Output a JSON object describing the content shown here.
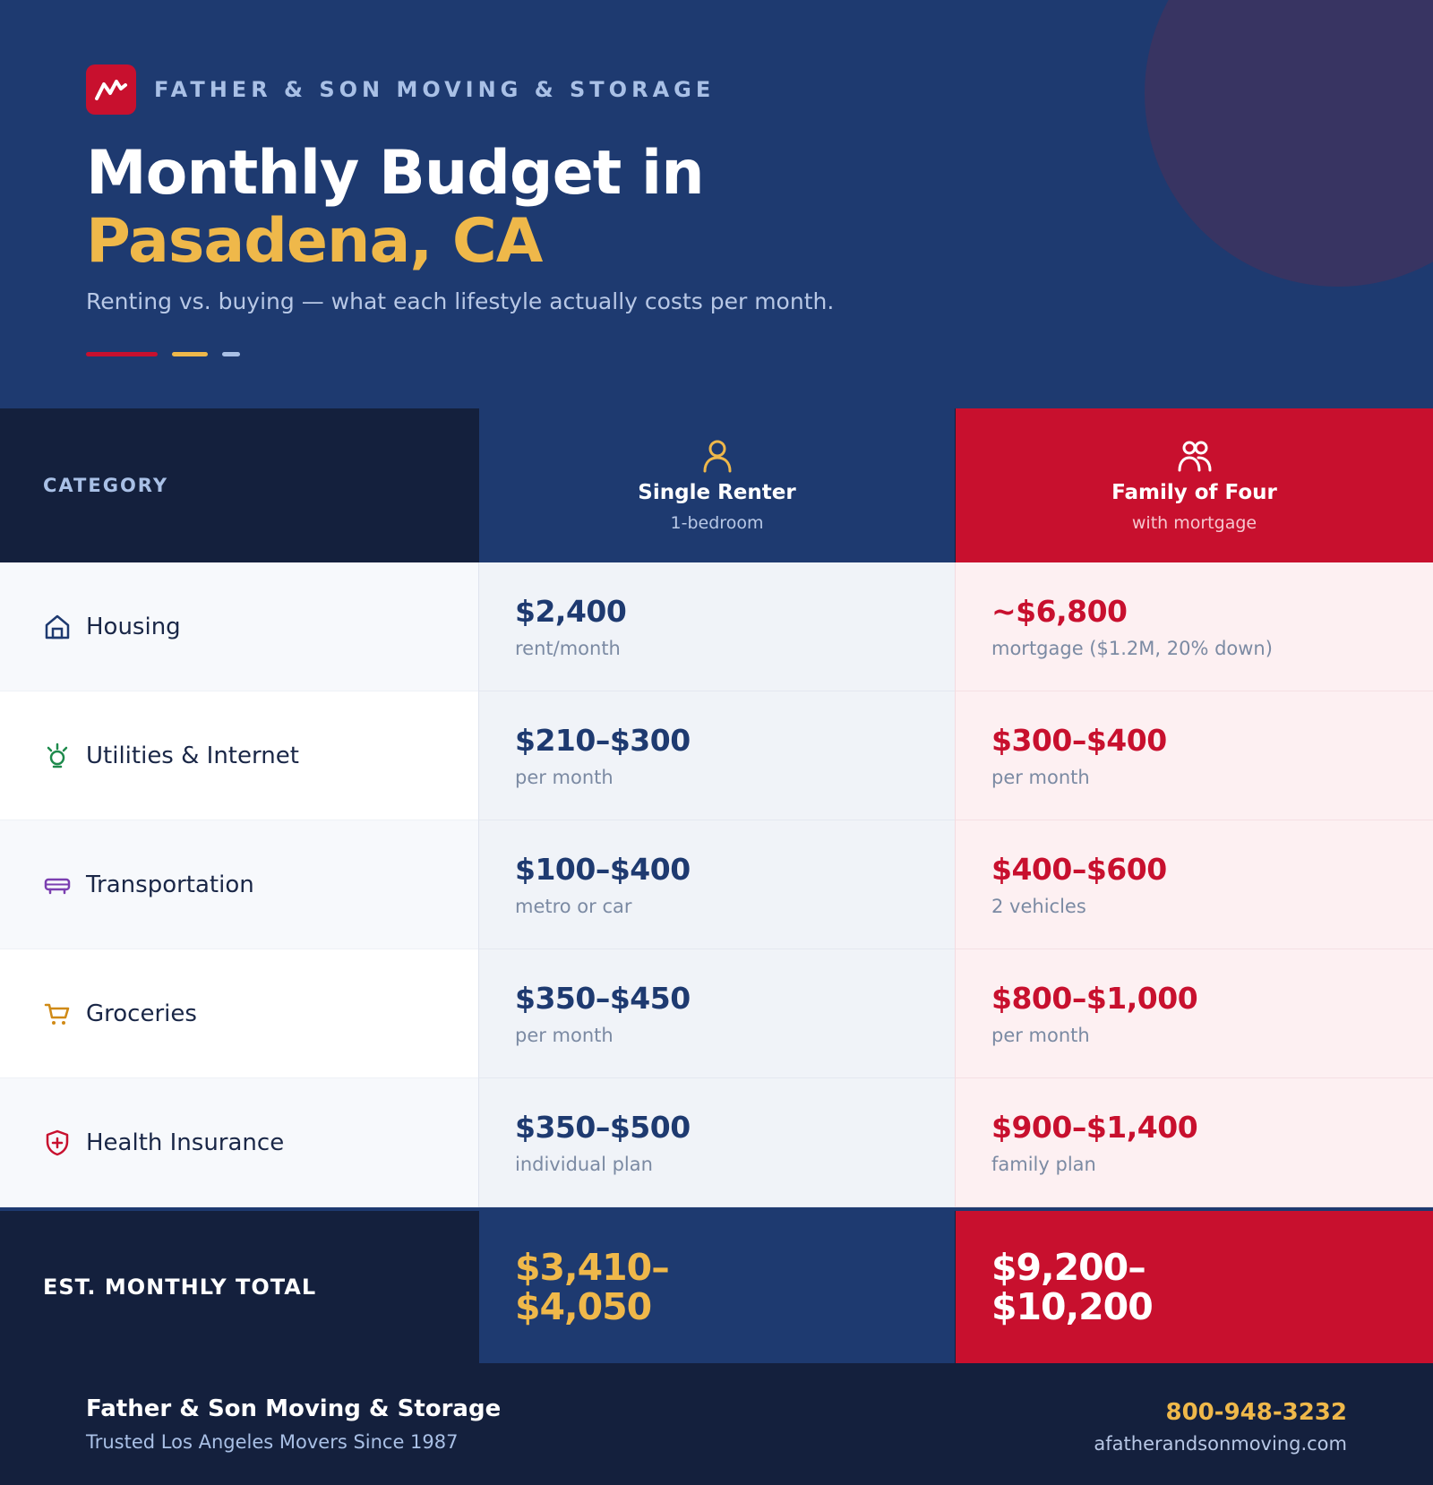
{
  "header": {
    "brand": "FATHER & SON MOVING & STORAGE",
    "title_line1": "Monthly Budget in",
    "title_line2": "Pasadena, CA",
    "subtitle": "Renting vs. buying — what each lifestyle actually costs per month."
  },
  "table": {
    "category_header": "CATEGORY",
    "columns": [
      {
        "title": "Single Renter",
        "subtitle": "1-bedroom",
        "icon": "person-icon"
      },
      {
        "title": "Family of Four",
        "subtitle": "with mortgage",
        "icon": "people-icon"
      }
    ],
    "rows": [
      {
        "label": "Housing",
        "icon": "house-icon",
        "icon_color": "#1e3a70",
        "single": {
          "value": "$2,400",
          "note": "rent/month"
        },
        "family": {
          "value": "~$6,800",
          "note": "mortgage ($1.2M, 20% down)"
        }
      },
      {
        "label": "Utilities & Internet",
        "icon": "lightbulb-icon",
        "icon_color": "#1e8a4c",
        "single": {
          "value": "$210–$300",
          "note": "per month"
        },
        "family": {
          "value": "$300–$400",
          "note": "per month"
        }
      },
      {
        "label": "Transportation",
        "icon": "vehicle-icon",
        "icon_color": "#7b3fb0",
        "single": {
          "value": "$100–$400",
          "note": "metro or car"
        },
        "family": {
          "value": "$400–$600",
          "note": "2 vehicles"
        }
      },
      {
        "label": "Groceries",
        "icon": "cart-icon",
        "icon_color": "#d08a16",
        "single": {
          "value": "$350–$450",
          "note": "per month"
        },
        "family": {
          "value": "$800–$1,000",
          "note": "per month"
        }
      },
      {
        "label": "Health Insurance",
        "icon": "shield-plus-icon",
        "icon_color": "#c8102e",
        "single": {
          "value": "$350–$500",
          "note": "individual plan"
        },
        "family": {
          "value": "$900–$1,400",
          "note": "family plan"
        }
      }
    ],
    "total": {
      "label": "EST. MONTHLY TOTAL",
      "single": "$3,410–$4,050",
      "family": "$9,200–$10,200"
    }
  },
  "footer": {
    "company": "Father & Son Moving & Storage",
    "tagline": "Trusted Los Angeles Movers Since 1987",
    "phone": "800-948-3232",
    "website": "afatherandsonmoving.com"
  },
  "colors": {
    "navy": "#1e3a70",
    "dark_navy": "#14203d",
    "red": "#c8102e",
    "gold": "#efb84a"
  }
}
